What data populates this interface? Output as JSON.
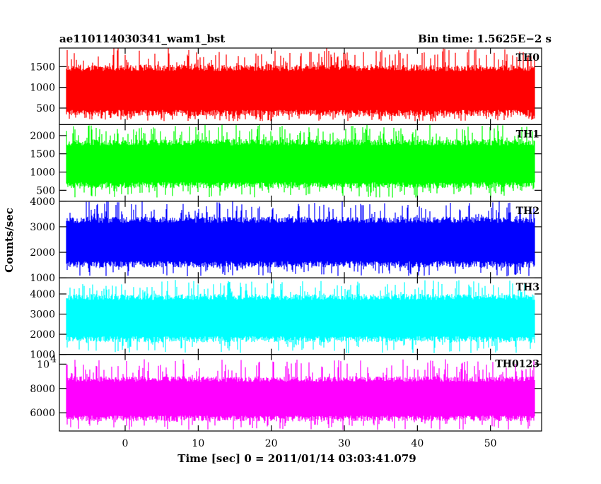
{
  "header": {
    "left_title": "ae110114030341_wam1_bst",
    "right_title": "Bin time: 1.5625E−2 s"
  },
  "chart_data": {
    "type": "line",
    "ylabel": "Counts/sec",
    "xlabel": "Time [sec] 0 = 2011/01/14 03:03:41.079",
    "x_range": [
      -9,
      57
    ],
    "x_ticks": [
      0,
      10,
      20,
      30,
      40,
      50
    ],
    "x_data_range": [
      -8,
      56
    ],
    "bin_time": 0.015625,
    "panels": [
      {
        "name": "TH0",
        "color": "#ff0000",
        "ylim": [
          100,
          1950
        ],
        "yticks": [
          {
            "v": 500,
            "label": "500"
          },
          {
            "v": 1000,
            "label": "1000"
          },
          {
            "v": 1500,
            "label": "1500"
          }
        ],
        "mean": 900,
        "typical_low": 300,
        "typical_high": 1550,
        "min": 180,
        "max": 1950
      },
      {
        "name": "TH1",
        "color": "#00ff00",
        "ylim": [
          200,
          2300
        ],
        "yticks": [
          {
            "v": 500,
            "label": "500"
          },
          {
            "v": 1000,
            "label": "1000"
          },
          {
            "v": 1500,
            "label": "1500"
          },
          {
            "v": 2000,
            "label": "2000"
          }
        ],
        "mean": 1150,
        "typical_low": 550,
        "typical_high": 1900,
        "min": 300,
        "max": 2300
      },
      {
        "name": "TH2",
        "color": "#0000ff",
        "ylim": [
          1000,
          4000
        ],
        "yticks": [
          {
            "v": 1000,
            "label": "1000"
          },
          {
            "v": 2000,
            "label": "2000"
          },
          {
            "v": 3000,
            "label": "3000"
          },
          {
            "v": 4000,
            "label": "4000"
          }
        ],
        "mean": 2300,
        "typical_low": 1400,
        "typical_high": 3400,
        "min": 1050,
        "max": 4000
      },
      {
        "name": "TH3",
        "color": "#00ffff",
        "ylim": [
          1000,
          4800
        ],
        "yticks": [
          {
            "v": 1000,
            "label": "1000"
          },
          {
            "v": 2000,
            "label": "2000"
          },
          {
            "v": 3000,
            "label": "3000"
          },
          {
            "v": 4000,
            "label": "4000"
          }
        ],
        "mean": 2700,
        "typical_low": 1600,
        "typical_high": 4000,
        "min": 1050,
        "max": 4700
      },
      {
        "name": "TH0123",
        "color": "#ff00ff",
        "ylim": [
          4500,
          10800
        ],
        "yticks": [
          {
            "v": 6000,
            "label": "6000"
          },
          {
            "v": 8000,
            "label": "8000"
          },
          {
            "v": 10000,
            "label": "10",
            "exp": "4"
          }
        ],
        "mean": 7000,
        "typical_low": 5300,
        "typical_high": 9000,
        "min": 4600,
        "max": 10400
      }
    ]
  }
}
